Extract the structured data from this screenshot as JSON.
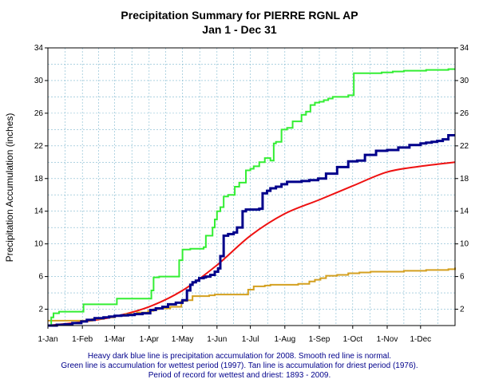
{
  "chart_data": {
    "type": "line",
    "title": "Precipitation Summary for PIERRE RGNL AP",
    "subtitle": "Jan 1 - Dec 31",
    "ylabel": "Precipitation Accumulation (inches)",
    "xlabel": "",
    "xlim": [
      0,
      366
    ],
    "ylim": [
      0,
      34
    ],
    "yticks": [
      2,
      6,
      10,
      14,
      18,
      22,
      26,
      30,
      34
    ],
    "xticks": [
      {
        "label": "1-Jan",
        "day": 0
      },
      {
        "label": "1-Feb",
        "day": 31
      },
      {
        "label": "1-Mar",
        "day": 60
      },
      {
        "label": "1-Apr",
        "day": 91
      },
      {
        "label": "1-May",
        "day": 121
      },
      {
        "label": "1-Jun",
        "day": 152
      },
      {
        "label": "1-Jul",
        "day": 182
      },
      {
        "label": "1-Aug",
        "day": 213
      },
      {
        "label": "1-Sep",
        "day": 244
      },
      {
        "label": "1-Oct",
        "day": 274
      },
      {
        "label": "1-Nov",
        "day": 305
      },
      {
        "label": "1-Dec",
        "day": 335
      }
    ],
    "grid": true,
    "series": [
      {
        "name": "2008",
        "color": "#00008b",
        "style": "thick-step",
        "x": [
          0,
          8,
          15,
          22,
          30,
          35,
          42,
          50,
          55,
          60,
          66,
          72,
          78,
          85,
          92,
          97,
          103,
          108,
          115,
          121,
          125,
          128,
          130,
          133,
          136,
          140,
          142,
          146,
          150,
          153,
          155,
          158,
          162,
          167,
          170,
          175,
          178,
          185,
          190,
          193,
          197,
          200,
          205,
          210,
          215,
          220,
          228,
          235,
          243,
          250,
          260,
          270,
          278,
          285,
          295,
          305,
          315,
          325,
          335,
          340,
          345,
          350,
          355,
          360,
          366
        ],
        "y": [
          0.0,
          0.1,
          0.15,
          0.3,
          0.5,
          0.7,
          0.9,
          1.0,
          1.1,
          1.2,
          1.25,
          1.3,
          1.4,
          1.5,
          1.9,
          2.1,
          2.3,
          2.6,
          2.8,
          3.1,
          4.3,
          5.0,
          5.3,
          5.5,
          5.8,
          5.9,
          6.0,
          6.2,
          6.6,
          7.0,
          8.5,
          11.0,
          11.2,
          11.4,
          12.0,
          14.0,
          14.2,
          14.2,
          14.3,
          16.2,
          16.5,
          16.8,
          17.0,
          17.3,
          17.6,
          17.6,
          17.7,
          17.8,
          18.0,
          18.6,
          19.4,
          20.1,
          20.2,
          20.9,
          21.4,
          21.5,
          21.8,
          22.1,
          22.3,
          22.4,
          22.5,
          22.6,
          22.8,
          23.3,
          23.3
        ]
      },
      {
        "name": "Normal",
        "color": "#ee1111",
        "style": "smooth",
        "x": [
          0,
          31,
          60,
          91,
          121,
          152,
          182,
          213,
          244,
          274,
          305,
          335,
          366
        ],
        "y": [
          0.0,
          0.45,
          1.1,
          2.3,
          4.3,
          7.4,
          11.0,
          13.7,
          15.4,
          17.1,
          18.8,
          19.5,
          20.0
        ]
      },
      {
        "name": "Wettest (1997)",
        "color": "#33ee33",
        "style": "step",
        "x": [
          0,
          3,
          5,
          10,
          30,
          32,
          60,
          62,
          90,
          93,
          95,
          100,
          115,
          118,
          121,
          128,
          140,
          142,
          148,
          150,
          152,
          155,
          158,
          162,
          165,
          168,
          172,
          178,
          182,
          185,
          190,
          195,
          200,
          203,
          205,
          210,
          212,
          215,
          220,
          228,
          232,
          236,
          240,
          244,
          248,
          252,
          256,
          262,
          270,
          275,
          285,
          290,
          300,
          310,
          320,
          330,
          340,
          350,
          360,
          366
        ],
        "y": [
          0.0,
          1.0,
          1.5,
          1.7,
          1.7,
          2.6,
          2.6,
          3.3,
          3.3,
          4.3,
          5.9,
          6.0,
          6.0,
          8.0,
          9.3,
          9.4,
          9.6,
          11.0,
          12.0,
          13.0,
          14.0,
          14.5,
          15.8,
          16.0,
          16.0,
          17.0,
          17.5,
          19.0,
          19.2,
          19.5,
          20.0,
          20.5,
          20.2,
          22.3,
          22.5,
          24.0,
          24.0,
          24.2,
          25.0,
          25.8,
          26.2,
          27.0,
          27.3,
          27.4,
          27.6,
          27.8,
          28.0,
          28.0,
          28.2,
          30.9,
          30.9,
          30.9,
          31.0,
          31.1,
          31.2,
          31.2,
          31.3,
          31.3,
          31.4,
          31.4
        ]
      },
      {
        "name": "Driest (1976)",
        "color": "#d4a020",
        "style": "step",
        "x": [
          0,
          30,
          40,
          50,
          60,
          70,
          80,
          90,
          95,
          100,
          110,
          120,
          125,
          130,
          145,
          150,
          160,
          180,
          185,
          195,
          200,
          220,
          225,
          235,
          240,
          245,
          250,
          260,
          270,
          280,
          290,
          300,
          320,
          340,
          350,
          360,
          366
        ],
        "y": [
          0.6,
          0.6,
          0.8,
          1.0,
          1.2,
          1.4,
          1.6,
          1.8,
          2.0,
          2.1,
          2.3,
          3.0,
          3.1,
          3.6,
          3.7,
          3.8,
          3.8,
          4.4,
          4.8,
          4.9,
          5.0,
          5.0,
          5.1,
          5.4,
          5.6,
          5.8,
          6.1,
          6.2,
          6.4,
          6.5,
          6.6,
          6.6,
          6.7,
          6.8,
          6.8,
          6.9,
          7.1
        ]
      }
    ],
    "captions": [
      "Heavy dark blue line is precipitation accumulation for 2008. Smooth red line is normal.",
      "Green line is accumulation for wettest period (1997).   Tan line is accumulation for driest period (1976).",
      "Period of record for wettest and driest: 1893 - 2009."
    ]
  }
}
